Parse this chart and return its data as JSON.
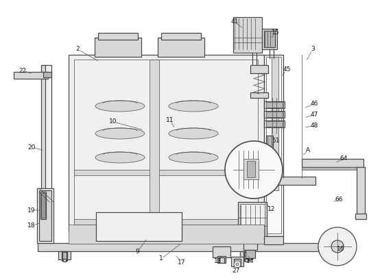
{
  "bg_color": "#ffffff",
  "lc": "#4a4a4a",
  "lc_light": "#888888",
  "fc_light": "#f0f0f0",
  "fc_mid": "#d8d8d8",
  "fc_dark": "#b8b8b8",
  "labels": [
    [
      "1",
      235,
      378,
      265,
      355
    ],
    [
      "2",
      113,
      72,
      145,
      90
    ],
    [
      "3",
      456,
      72,
      446,
      90
    ],
    [
      "9",
      200,
      368,
      215,
      348
    ],
    [
      "10",
      165,
      178,
      210,
      190
    ],
    [
      "11",
      248,
      175,
      255,
      188
    ],
    [
      "12",
      396,
      305,
      385,
      295
    ],
    [
      "13",
      318,
      382,
      325,
      372
    ],
    [
      "14",
      365,
      382,
      362,
      372
    ],
    [
      "15",
      402,
      47,
      395,
      57
    ],
    [
      "16",
      497,
      363,
      490,
      358
    ],
    [
      "17",
      265,
      383,
      255,
      372
    ],
    [
      "18",
      46,
      330,
      60,
      325
    ],
    [
      "19",
      46,
      307,
      60,
      307
    ],
    [
      "20",
      46,
      215,
      65,
      220
    ],
    [
      "22",
      33,
      103,
      48,
      108
    ],
    [
      "27",
      344,
      395,
      348,
      388
    ],
    [
      "41",
      342,
      32,
      355,
      42
    ],
    [
      "45",
      418,
      102,
      410,
      112
    ],
    [
      "46",
      458,
      152,
      443,
      158
    ],
    [
      "47",
      458,
      168,
      443,
      172
    ],
    [
      "48",
      458,
      184,
      443,
      186
    ],
    [
      "51",
      402,
      205,
      395,
      215
    ],
    [
      "64",
      501,
      232,
      488,
      238
    ],
    [
      "66",
      494,
      292,
      484,
      295
    ],
    [
      "A",
      449,
      220,
      440,
      228
    ]
  ]
}
